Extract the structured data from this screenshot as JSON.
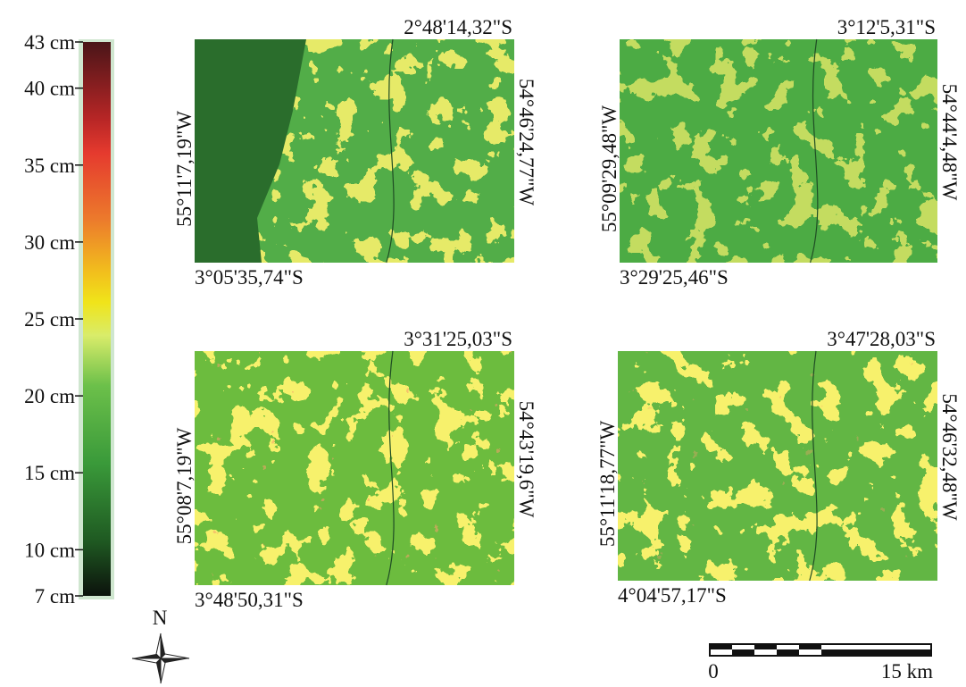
{
  "legend": {
    "range": [
      7,
      43
    ],
    "ticks": [
      {
        "value": 43,
        "label": "43 cm"
      },
      {
        "value": 40,
        "label": "40 cm"
      },
      {
        "value": 35,
        "label": "35 cm"
      },
      {
        "value": 30,
        "label": "30 cm"
      },
      {
        "value": 25,
        "label": "25 cm"
      },
      {
        "value": 20,
        "label": "20 cm"
      },
      {
        "value": 15,
        "label": "15 cm"
      },
      {
        "value": 10,
        "label": "10 cm"
      },
      {
        "value": 7,
        "label": "7 cm"
      }
    ]
  },
  "maps": [
    {
      "top": "2°48'14,32\"S",
      "bottom": "3°05'35,74\"S",
      "left": "55°11'7,19\"W",
      "right": "54°46'24,77\"W"
    },
    {
      "top": "3°12'5,31\"S",
      "bottom": "3°29'25,46\"S",
      "left": "55°09'29,48\"W",
      "right": "54°44'4,48\"W"
    },
    {
      "top": "3°31'25,03\"S",
      "bottom": "3°48'50,31\"S",
      "left": "55°08'7,19\"W",
      "right": "54°43'19,6\"W"
    },
    {
      "top": "3°47'28,03\"S",
      "bottom": "4°04'57,17\"S",
      "left": "55°11'18,77\"W",
      "right": "54°46'32,48\"W"
    }
  ],
  "north": "N",
  "scale": {
    "start": "0",
    "end": "15 km"
  }
}
